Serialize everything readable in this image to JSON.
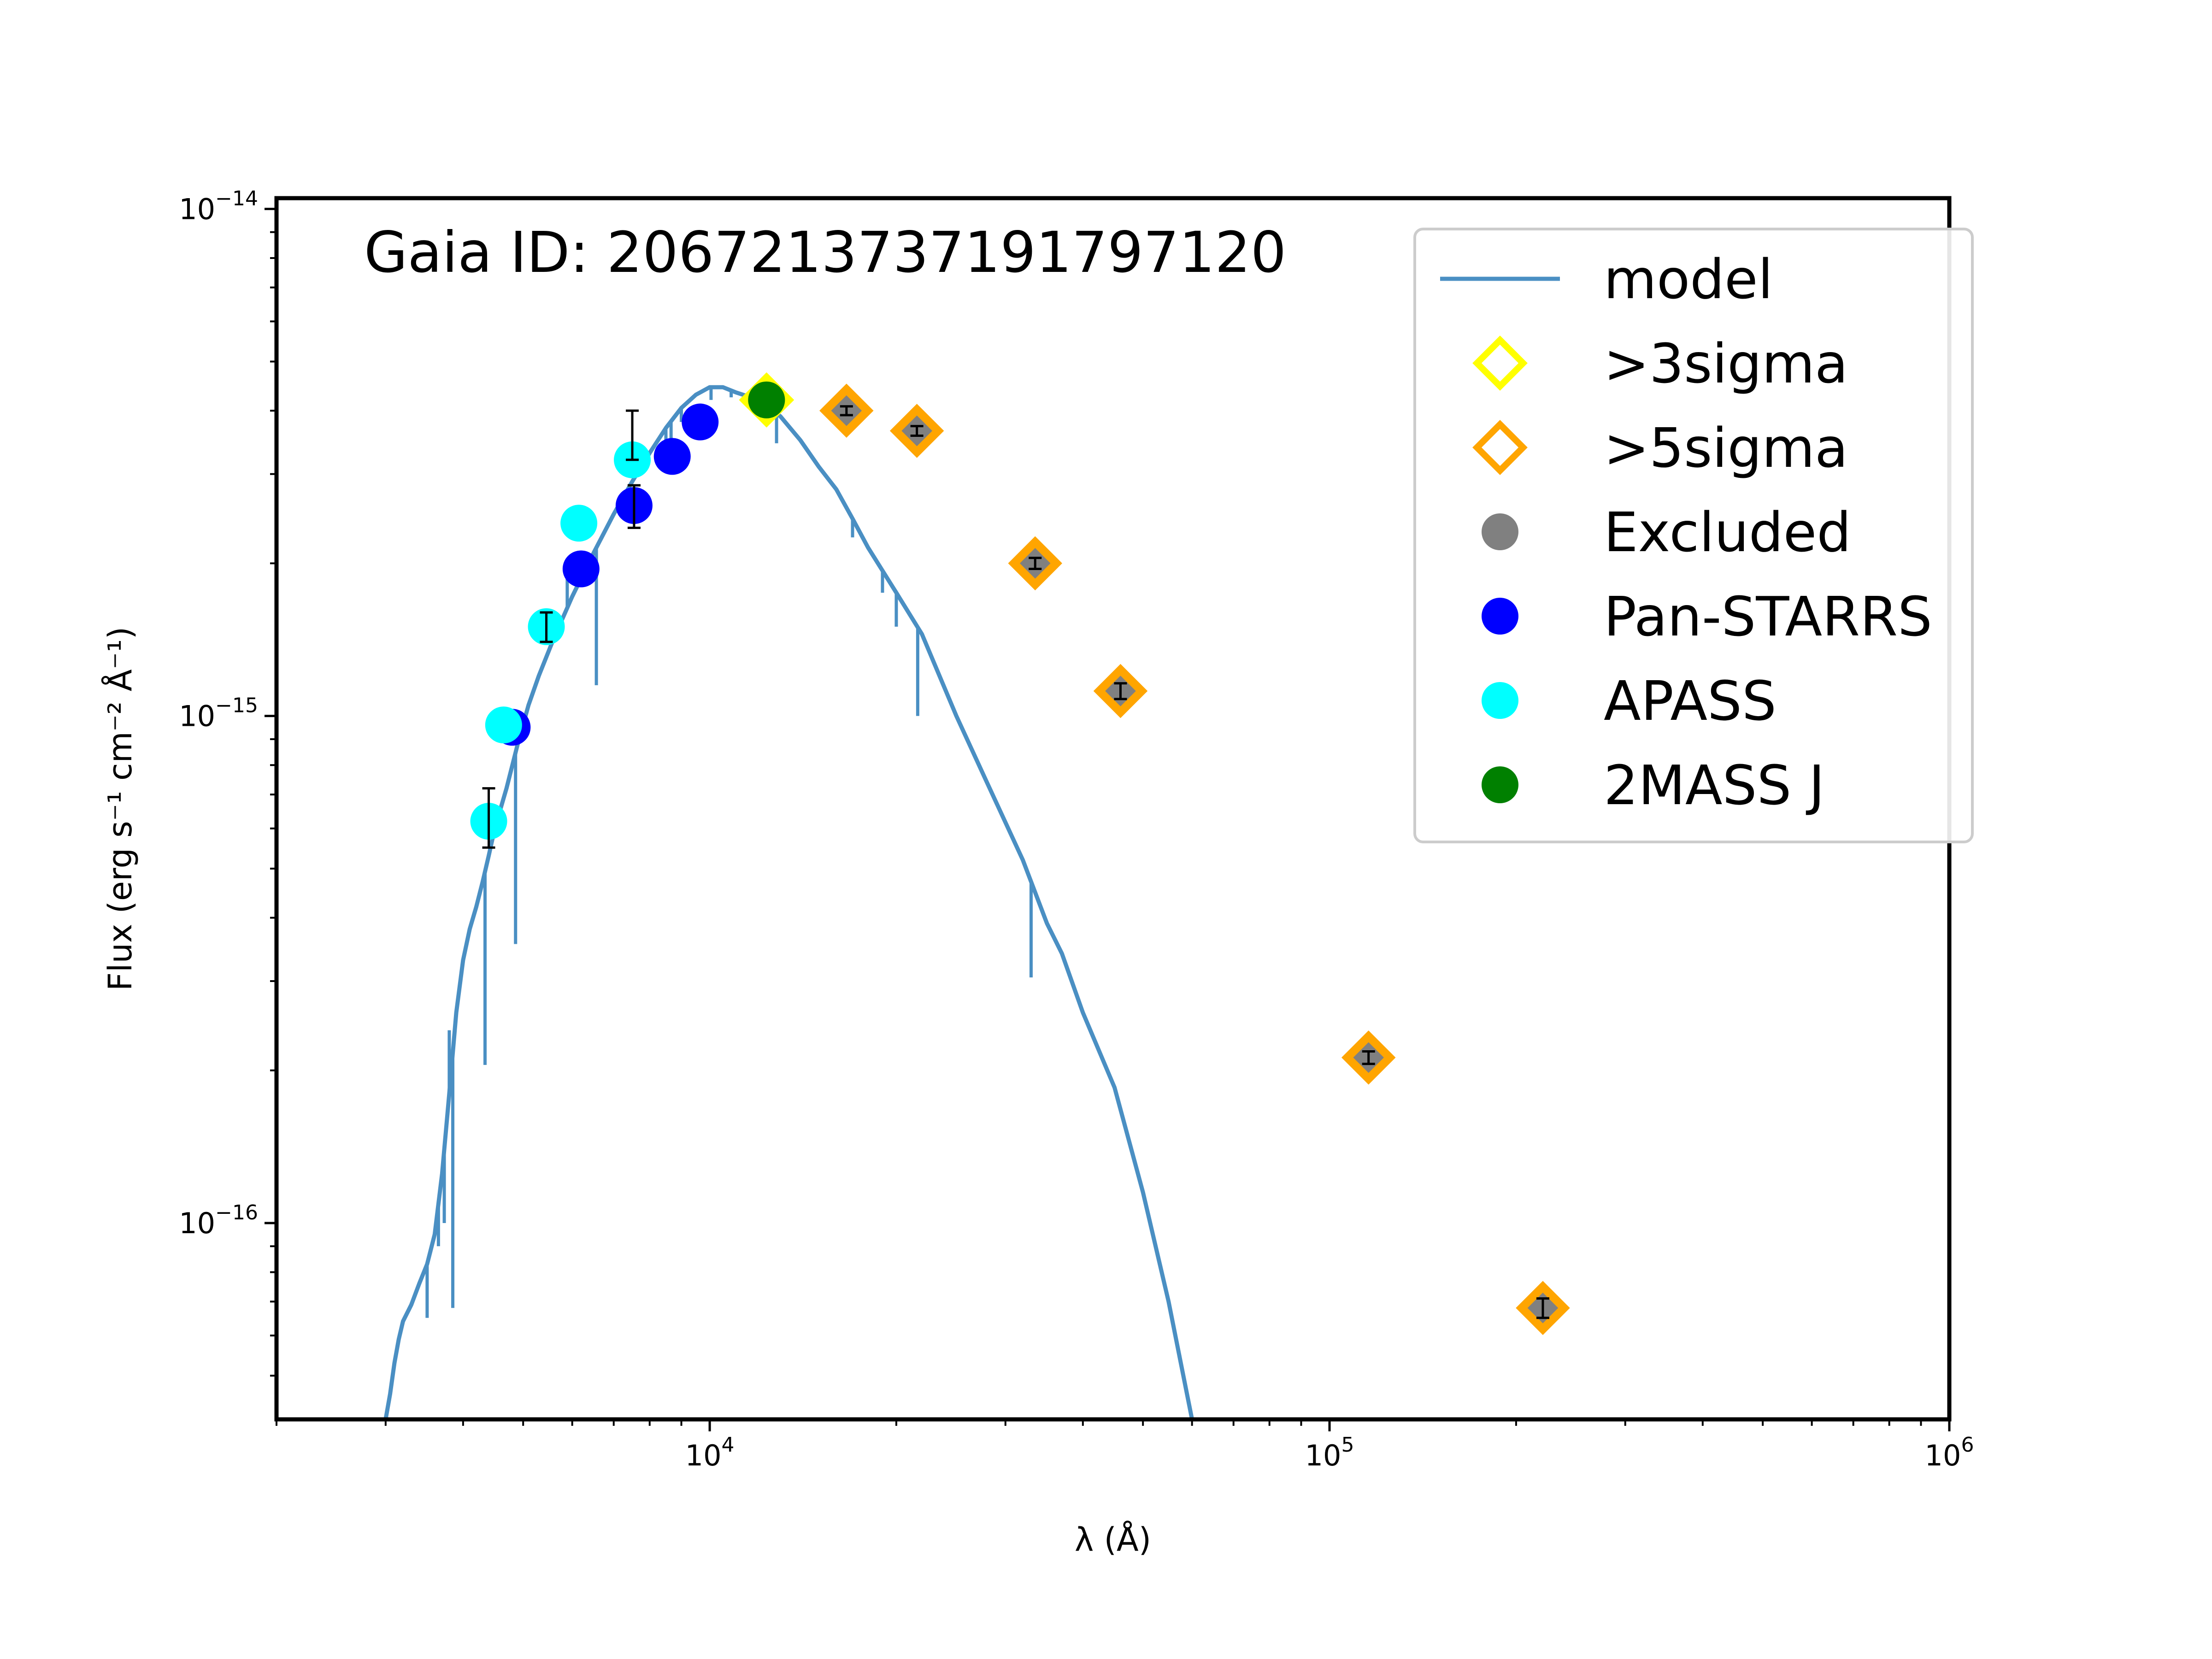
{
  "chart_data": {
    "type": "scatter",
    "title": "Gaia ID: 2067213737191797120",
    "xlabel": "λ (Å)",
    "ylabel": "Flux (erg s⁻¹ cm⁻² Å⁻¹)",
    "xscale": "log",
    "yscale": "log",
    "xlim": [
      2000,
      1000000
    ],
    "ylim": [
      4.1e-17,
      1.05e-14
    ],
    "x_ticks": [
      {
        "value": 10000,
        "base": "10",
        "exp": "4"
      },
      {
        "value": 100000,
        "base": "10",
        "exp": "5"
      },
      {
        "value": 1000000,
        "base": "10",
        "exp": "6"
      }
    ],
    "y_ticks": [
      {
        "value": 1e-16,
        "base": "10",
        "exp": "−16"
      },
      {
        "value": 1e-15,
        "base": "10",
        "exp": "−15"
      },
      {
        "value": 1e-14,
        "base": "10",
        "exp": "−14"
      }
    ],
    "legend": [
      {
        "key": "model",
        "label": "model",
        "marker": "line",
        "color": "#4a8fc3"
      },
      {
        "key": "sig3",
        "label": ">3sigma",
        "marker": "open-diamond",
        "color": "#ffff00"
      },
      {
        "key": "sig5",
        "label": ">5sigma",
        "marker": "open-diamond",
        "color": "#ffa500"
      },
      {
        "key": "excluded",
        "label": "Excluded",
        "marker": "circle",
        "color": "#808080"
      },
      {
        "key": "panstarrs",
        "label": "Pan-STARRS",
        "marker": "circle",
        "color": "#0000ff"
      },
      {
        "key": "apass",
        "label": "APASS",
        "marker": "circle",
        "color": "#00ffff"
      },
      {
        "key": "twomass",
        "label": "2MASS J",
        "marker": "circle",
        "color": "#008000"
      }
    ],
    "model": [
      [
        3000,
        4.1e-17
      ],
      [
        3050,
        4.6e-17
      ],
      [
        3100,
        5.3e-17
      ],
      [
        3150,
        5.9e-17
      ],
      [
        3200,
        6.4e-17
      ],
      [
        3300,
        6.9e-17
      ],
      [
        3400,
        7.6e-17
      ],
      [
        3500,
        8.3e-17
      ],
      [
        3600,
        9.5e-17
      ],
      [
        3700,
        1.25e-16
      ],
      [
        3800,
        1.8e-16
      ],
      [
        3900,
        2.6e-16
      ],
      [
        4000,
        3.3e-16
      ],
      [
        4100,
        3.8e-16
      ],
      [
        4200,
        4.2e-16
      ],
      [
        4300,
        4.7e-16
      ],
      [
        4400,
        5.3e-16
      ],
      [
        4500,
        6e-16
      ],
      [
        4700,
        7.2e-16
      ],
      [
        4900,
        8.8e-16
      ],
      [
        5100,
        1.05e-15
      ],
      [
        5300,
        1.2e-15
      ],
      [
        5600,
        1.42e-15
      ],
      [
        6000,
        1.72e-15
      ],
      [
        6500,
        2.1e-15
      ],
      [
        7000,
        2.5e-15
      ],
      [
        7500,
        2.9e-15
      ],
      [
        8000,
        3.3e-15
      ],
      [
        8500,
        3.7e-15
      ],
      [
        9000,
        4.05e-15
      ],
      [
        9500,
        4.3e-15
      ],
      [
        10000,
        4.45e-15
      ],
      [
        10500,
        4.45e-15
      ],
      [
        11000,
        4.35e-15
      ],
      [
        12000,
        4.2e-15
      ],
      [
        13000,
        3.9e-15
      ],
      [
        14000,
        3.5e-15
      ],
      [
        15000,
        3.1e-15
      ],
      [
        16000,
        2.8e-15
      ],
      [
        17000,
        2.45e-15
      ],
      [
        18000,
        2.15e-15
      ],
      [
        20000,
        1.75e-15
      ],
      [
        22000,
        1.45e-15
      ],
      [
        25000,
        1e-15
      ],
      [
        28000,
        7.4e-16
      ],
      [
        32000,
        5.2e-16
      ],
      [
        35000,
        3.9e-16
      ],
      [
        37000,
        3.4e-16
      ],
      [
        40000,
        2.6e-16
      ],
      [
        45000,
        1.85e-16
      ],
      [
        50000,
        1.15e-16
      ],
      [
        55000,
        7e-17
      ],
      [
        60000,
        4.1e-17
      ]
    ],
    "model_dips": [
      [
        3500,
        6.5e-17
      ],
      [
        3650,
        9e-17
      ],
      [
        3730,
        1e-16
      ],
      [
        3800,
        2.4e-16
      ],
      [
        3850,
        6.8e-17
      ],
      [
        4340,
        2.05e-16
      ],
      [
        4861,
        3.55e-16
      ],
      [
        5890,
        1.9e-15
      ],
      [
        6563,
        1.15e-15
      ],
      [
        8498,
        3.4e-15
      ],
      [
        8662,
        3.45e-15
      ],
      [
        9000,
        3.8e-15
      ],
      [
        10049,
        4.2e-15
      ],
      [
        10830,
        4.25e-15
      ],
      [
        12818,
        3.45e-15
      ],
      [
        17000,
        2.25e-15
      ],
      [
        19000,
        1.75e-15
      ],
      [
        20000,
        1.5e-15
      ],
      [
        21655,
        1e-15
      ],
      [
        33000,
        3.05e-16
      ]
    ],
    "points": [
      {
        "series": "apass",
        "wavelength": 4400,
        "flux": 6.2e-16,
        "err_lo": 5.5e-16,
        "err_hi": 7.2e-16
      },
      {
        "series": "panstarrs",
        "wavelength": 4800,
        "flux": 9.5e-16,
        "err_lo": 9.5e-16,
        "err_hi": 9.5e-16
      },
      {
        "series": "apass",
        "wavelength": 4650,
        "flux": 9.6e-16,
        "err_lo": 9.6e-16,
        "err_hi": 9.6e-16
      },
      {
        "series": "apass",
        "wavelength": 5450,
        "flux": 1.5e-15,
        "err_lo": 1.4e-15,
        "err_hi": 1.6e-15
      },
      {
        "series": "panstarrs",
        "wavelength": 6200,
        "flux": 1.95e-15,
        "err_lo": 1.95e-15,
        "err_hi": 1.95e-15
      },
      {
        "series": "apass",
        "wavelength": 6150,
        "flux": 2.4e-15,
        "err_lo": 2.4e-15,
        "err_hi": 2.4e-15
      },
      {
        "series": "panstarrs",
        "wavelength": 7550,
        "flux": 2.6e-15,
        "err_lo": 2.35e-15,
        "err_hi": 2.85e-15
      },
      {
        "series": "apass",
        "wavelength": 7500,
        "flux": 3.2e-15,
        "err_lo": 3.2e-15,
        "err_hi": 4e-15
      },
      {
        "series": "panstarrs",
        "wavelength": 8700,
        "flux": 3.25e-15,
        "err_lo": 3.25e-15,
        "err_hi": 3.25e-15
      },
      {
        "series": "panstarrs",
        "wavelength": 9650,
        "flux": 3.8e-15,
        "err_lo": 3.8e-15,
        "err_hi": 3.8e-15
      },
      {
        "series": "twomass",
        "wavelength": 12350,
        "flux": 4.2e-15,
        "err_lo": 4.2e-15,
        "err_hi": 4.2e-15,
        "flag": "sig3"
      },
      {
        "series": "excluded",
        "wavelength": 16620,
        "flux": 4e-15,
        "err_lo": 3.92e-15,
        "err_hi": 4.08e-15,
        "flag": "sig5"
      },
      {
        "series": "excluded",
        "wavelength": 21590,
        "flux": 3.65e-15,
        "err_lo": 3.57e-15,
        "err_hi": 3.73e-15,
        "flag": "sig5"
      },
      {
        "series": "excluded",
        "wavelength": 33500,
        "flux": 2e-15,
        "err_lo": 1.95e-15,
        "err_hi": 2.05e-15,
        "flag": "sig5"
      },
      {
        "series": "excluded",
        "wavelength": 46000,
        "flux": 1.12e-15,
        "err_lo": 1.08e-15,
        "err_hi": 1.16e-15,
        "flag": "sig5"
      },
      {
        "series": "excluded",
        "wavelength": 115600,
        "flux": 2.12e-16,
        "err_lo": 2.06e-16,
        "err_hi": 2.18e-16,
        "flag": "sig5"
      },
      {
        "series": "excluded",
        "wavelength": 220900,
        "flux": 6.8e-17,
        "err_lo": 6.5e-17,
        "err_hi": 7.1e-17,
        "flag": "sig5"
      }
    ]
  }
}
